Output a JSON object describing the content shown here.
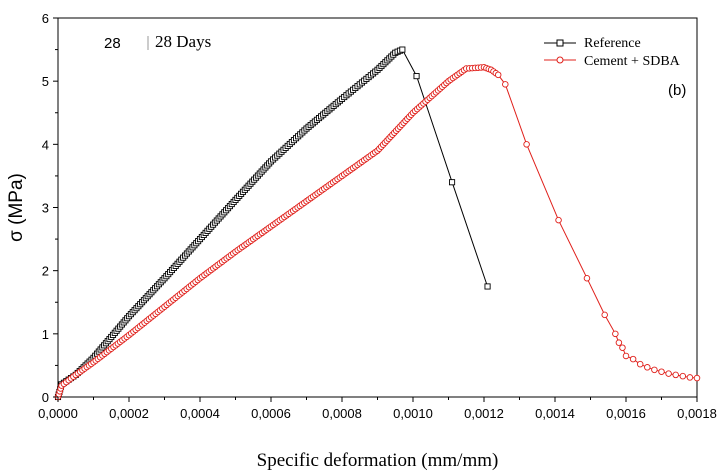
{
  "chart_data": {
    "type": "line",
    "xlabel": "Specific deformation (mm/mm)",
    "ylabel": "σ (MPa)",
    "xlim": [
      0,
      0.0018
    ],
    "ylim": [
      0,
      6
    ],
    "x_ticks": [
      "0,0000",
      "0,0002",
      "0,0004",
      "0,0006",
      "0,0008",
      "0,0010",
      "0,0012",
      "0,0014",
      "0,0016",
      "0,0018"
    ],
    "y_ticks": [
      "0",
      "1",
      "2",
      "3",
      "4",
      "5",
      "6"
    ],
    "annotations": {
      "box_value": "28",
      "age_label": "28 Days",
      "panel_label": "(b)"
    },
    "legend_position": "top-right",
    "grid": false,
    "series": [
      {
        "name": "Reference",
        "color": "#000000",
        "marker": "square",
        "dense": [
          [
            0,
            0.0
          ],
          [
            1e-05,
            0.2
          ],
          [
            5e-05,
            0.35
          ],
          [
            0.0001,
            0.62
          ],
          [
            0.0002,
            1.28
          ],
          [
            0.0003,
            1.88
          ],
          [
            0.0004,
            2.5
          ],
          [
            0.0005,
            3.12
          ],
          [
            0.0006,
            3.73
          ],
          [
            0.0007,
            4.25
          ],
          [
            0.0008,
            4.72
          ],
          [
            0.0009,
            5.18
          ],
          [
            0.00095,
            5.45
          ],
          [
            0.00097,
            5.5
          ]
        ],
        "sparse": [
          [
            0.00097,
            5.5
          ],
          [
            0.00101,
            5.08
          ],
          [
            0.00111,
            3.4
          ],
          [
            0.00121,
            1.75
          ]
        ]
      },
      {
        "name": "Cement + SDBA",
        "color": "#e0201b",
        "marker": "circle",
        "dense": [
          [
            0,
            0.0
          ],
          [
            1e-05,
            0.18
          ],
          [
            5e-05,
            0.35
          ],
          [
            0.0001,
            0.55
          ],
          [
            0.0002,
            0.98
          ],
          [
            0.0003,
            1.43
          ],
          [
            0.0004,
            1.88
          ],
          [
            0.0005,
            2.3
          ],
          [
            0.0006,
            2.7
          ],
          [
            0.0007,
            3.1
          ],
          [
            0.0008,
            3.5
          ],
          [
            0.00085,
            3.7
          ],
          [
            0.0009,
            3.9
          ],
          [
            0.001,
            4.5
          ],
          [
            0.0011,
            5.0
          ],
          [
            0.00115,
            5.2
          ],
          [
            0.0012,
            5.22
          ],
          [
            0.00122,
            5.18
          ],
          [
            0.00124,
            5.1
          ]
        ],
        "sparse": [
          [
            0.00124,
            5.1
          ],
          [
            0.00126,
            4.95
          ],
          [
            0.00132,
            4.0
          ],
          [
            0.00141,
            2.8
          ],
          [
            0.00149,
            1.88
          ],
          [
            0.00154,
            1.3
          ],
          [
            0.00157,
            1.0
          ],
          [
            0.00158,
            0.86
          ],
          [
            0.00159,
            0.78
          ],
          [
            0.0016,
            0.65
          ],
          [
            0.00162,
            0.6
          ],
          [
            0.00164,
            0.52
          ],
          [
            0.00166,
            0.47
          ],
          [
            0.00168,
            0.43
          ],
          [
            0.0017,
            0.4
          ],
          [
            0.00172,
            0.37
          ],
          [
            0.00174,
            0.35
          ],
          [
            0.00176,
            0.33
          ],
          [
            0.00178,
            0.31
          ],
          [
            0.0018,
            0.3
          ]
        ]
      }
    ]
  }
}
